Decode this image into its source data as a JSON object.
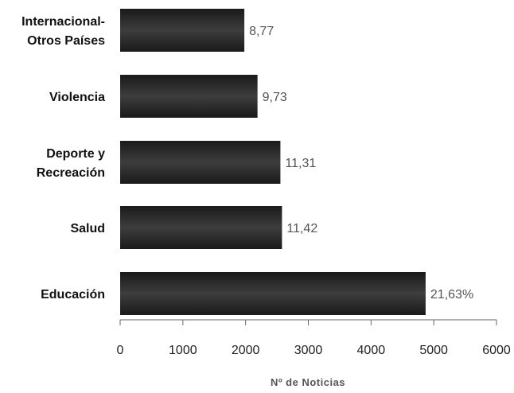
{
  "chart_data": {
    "type": "bar",
    "orientation": "horizontal",
    "title": "",
    "xlabel": "Nº de Noticias",
    "ylabel": "",
    "xlim": [
      0,
      6000
    ],
    "xticks": [
      0,
      1000,
      2000,
      3000,
      4000,
      5000,
      6000
    ],
    "grid": false,
    "legend": "none",
    "bar_color": "#2b2b2b",
    "categories": [
      [
        "Internacional-",
        "Otros Países"
      ],
      [
        "Violencia"
      ],
      [
        "Deporte y",
        "Recreación"
      ],
      [
        "Salud"
      ],
      [
        "Educación"
      ]
    ],
    "values": [
      1980,
      2190,
      2555,
      2580,
      4870
    ],
    "data_labels": [
      "8,77",
      "9,73",
      "11,31",
      "11,42",
      "21,63%"
    ]
  }
}
